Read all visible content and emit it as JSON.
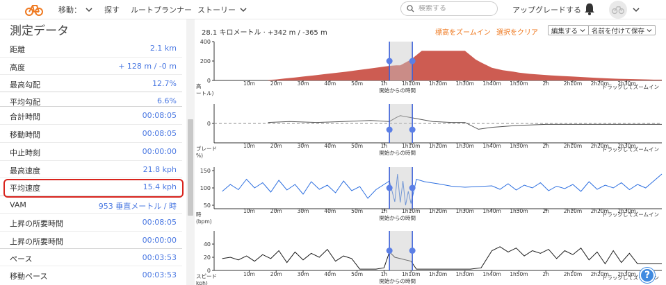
{
  "header": {
    "nav": [
      {
        "label": "移動：",
        "has_menu": true
      },
      {
        "label": "探す",
        "has_menu": false
      },
      {
        "label": "ルートプランナー",
        "has_menu": false
      },
      {
        "label": "ストーリー",
        "has_menu": true
      }
    ],
    "search_placeholder": "検索する",
    "upgrade_label": "アップグレードする",
    "icons": {
      "logo": "bike-logo-icon",
      "search": "search-icon",
      "bell": "bell-icon",
      "avatar": "avatar-icon"
    },
    "accent_color": "#ef7a22"
  },
  "sidebar": {
    "title": "測定データ",
    "rows": [
      {
        "label": "距離",
        "value": "2.1 km"
      },
      {
        "label": "高度",
        "value": "+ 128 m / -0 m"
      },
      {
        "label": "最高勾配",
        "value": "12.7%"
      },
      {
        "label": "平均勾配",
        "value": "6.6%"
      },
      {
        "label": "合計時間",
        "value": "00:08:05"
      },
      {
        "label": "移動時間",
        "value": "00:08:05"
      },
      {
        "label": "中止時刻",
        "value": "00:00:00"
      },
      {
        "label": "最高速度",
        "value": "21.8 kph"
      },
      {
        "label": "平均速度",
        "value": "15.4 kph",
        "highlighted": true
      },
      {
        "label": "VAM",
        "value": "953 垂直メートル / 時"
      },
      {
        "label": "上昇の所要時間",
        "value": "00:08:05"
      },
      {
        "label": "上昇の所要時間",
        "value": "00:00:00"
      },
      {
        "label": "ペース",
        "value": "00:03:53"
      },
      {
        "label": "移動ペース",
        "value": "00:03:53"
      }
    ],
    "value_color": "#4a78e2",
    "highlight_color": "#d9231c"
  },
  "toolbar": {
    "summary": "28.1 キロメートル · +342 m / -365 m",
    "zoom_label": "標高をズームイン",
    "clear_label": "選択をクリア",
    "edit_label": "編集する",
    "save_label": "名前を付けて保存"
  },
  "chart_data": [
    {
      "type": "area",
      "ylabel": "高\nートル)",
      "ylim": [
        0,
        400
      ],
      "yticks": [
        0,
        200,
        400
      ],
      "series_color": "#cd5c52",
      "x": [
        17,
        20,
        23,
        27,
        30,
        34,
        38,
        42,
        46,
        50,
        54,
        58,
        62,
        64.5,
        66,
        70,
        74,
        78,
        82,
        86,
        88,
        90,
        92,
        94,
        96,
        100,
        104,
        108,
        110,
        114,
        118,
        122,
        126,
        130,
        134,
        138,
        142,
        146,
        150,
        154,
        158,
        160,
        163
      ],
      "values": [
        5,
        10,
        20,
        30,
        40,
        52,
        65,
        78,
        90,
        105,
        120,
        135,
        150,
        155,
        155,
        215,
        305,
        305,
        305,
        305,
        305,
        305,
        260,
        215,
        185,
        130,
        105,
        90,
        80,
        68,
        60,
        52,
        46,
        40,
        34,
        28,
        22,
        18,
        15,
        12,
        10,
        8,
        8
      ]
    },
    {
      "type": "line",
      "ylabel": "ブレード\n%)",
      "ylim": [
        -20,
        20
      ],
      "yticks": [
        0
      ],
      "series_color": "#555555",
      "x": [
        17,
        25,
        35,
        45,
        55,
        62,
        64.5,
        66,
        70,
        78,
        85,
        90,
        95,
        100,
        110,
        120,
        130,
        140,
        150,
        163
      ],
      "values": [
        1,
        2,
        1,
        2,
        3,
        2,
        6,
        8,
        6,
        2,
        1,
        1,
        -6,
        -4,
        -2,
        -1,
        -1,
        -1,
        -1,
        -1
      ]
    },
    {
      "type": "line",
      "ylabel": "時\n(bpm)",
      "ylim": [
        40,
        160
      ],
      "yticks": [
        50,
        100,
        150
      ],
      "series_color": "#2d6fe0",
      "x": [
        0,
        3,
        6,
        9,
        12,
        15,
        18,
        21,
        24,
        27,
        30,
        33,
        36,
        39,
        42,
        45,
        48,
        51,
        54,
        57,
        60,
        62,
        64,
        65,
        66,
        67,
        68,
        69,
        70,
        72,
        75,
        80,
        85,
        90,
        95,
        100,
        103,
        106,
        109,
        112,
        115,
        118,
        121,
        124,
        127,
        130,
        133,
        136,
        139,
        142,
        145,
        148,
        151,
        154,
        157,
        160,
        163
      ],
      "values": [
        90,
        110,
        95,
        125,
        100,
        115,
        88,
        122,
        94,
        110,
        82,
        118,
        96,
        108,
        86,
        120,
        92,
        104,
        70,
        95,
        110,
        120,
        60,
        140,
        58,
        120,
        50,
        90,
        55,
        125,
        118,
        112,
        105,
        102,
        104,
        106,
        96,
        112,
        94,
        108,
        100,
        115,
        92,
        105,
        98,
        110,
        90,
        118,
        96,
        108,
        100,
        115,
        95,
        110,
        100,
        120,
        140
      ]
    },
    {
      "type": "line",
      "ylabel": "スピード\nkph)",
      "ylim": [
        0,
        60
      ],
      "yticks": [
        0,
        20,
        40
      ],
      "series_color": "#1a1a1a",
      "x": [
        0,
        3,
        6,
        9,
        12,
        15,
        18,
        21,
        24,
        27,
        30,
        33,
        36,
        39,
        42,
        45,
        48,
        51,
        54,
        57,
        60,
        62,
        64,
        66,
        68,
        70,
        72,
        74,
        76,
        78,
        80,
        84,
        88,
        92,
        96,
        100,
        103,
        106,
        109,
        112,
        115,
        118,
        121,
        124,
        127,
        130,
        133,
        136,
        139,
        142,
        145,
        148,
        151,
        154,
        157,
        160,
        163
      ],
      "values": [
        18,
        20,
        16,
        22,
        14,
        24,
        18,
        30,
        12,
        28,
        16,
        26,
        20,
        32,
        14,
        22,
        18,
        2,
        2,
        2,
        4,
        28,
        20,
        18,
        16,
        14,
        2,
        2,
        2,
        2,
        2,
        2,
        2,
        2,
        4,
        30,
        36,
        28,
        34,
        22,
        30,
        26,
        32,
        18,
        30,
        24,
        34,
        16,
        28,
        10,
        30,
        12,
        26,
        10,
        10,
        10,
        10
      ]
    }
  ],
  "chart_common": {
    "xlabel": "開始からの時間",
    "drag_hint": "ドラッグしてズームイン",
    "x_ticks": [
      {
        "v": 10,
        "label": "10m"
      },
      {
        "v": 20,
        "label": "20m"
      },
      {
        "v": 30,
        "label": "30m"
      },
      {
        "v": 40,
        "label": "40m"
      },
      {
        "v": 50,
        "label": "50m"
      },
      {
        "v": 60,
        "label": "1h"
      },
      {
        "v": 70,
        "label": "1h10m"
      },
      {
        "v": 80,
        "label": "1h20m"
      },
      {
        "v": 90,
        "label": "1h30m"
      },
      {
        "v": 100,
        "label": "1h40m"
      },
      {
        "v": 110,
        "label": "1h50m"
      },
      {
        "v": 120,
        "label": "2h"
      },
      {
        "v": 130,
        "label": "2h10m"
      },
      {
        "v": 140,
        "label": "2h20m"
      },
      {
        "v": 150,
        "label": "2h30m"
      }
    ],
    "x_range": [
      -3,
      163
    ],
    "selection_range": [
      62,
      70.5
    ],
    "selection_color": "#3a5fd8"
  }
}
